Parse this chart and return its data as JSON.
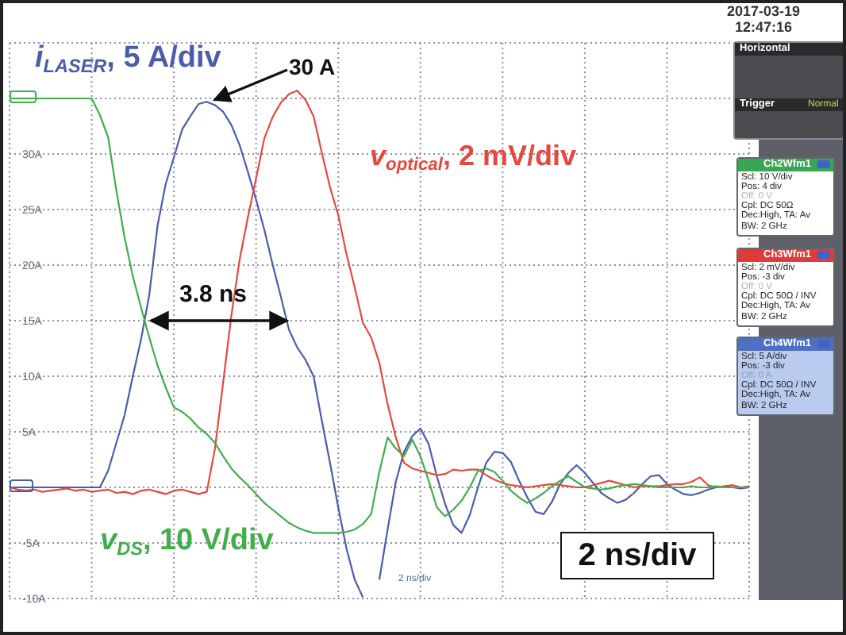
{
  "chart_data": {
    "type": "line",
    "categories": [
      null,
      null,
      null,
      null,
      null,
      null,
      null,
      null,
      null,
      null,
      null,
      null,
      null,
      null,
      null,
      null,
      null,
      null,
      null,
      null,
      null,
      null,
      null,
      null,
      null,
      null,
      null,
      null,
      null,
      null,
      null,
      null,
      null,
      null,
      null,
      null,
      null,
      null,
      null,
      null,
      null,
      null,
      null,
      null,
      null,
      null,
      null,
      null,
      null,
      null,
      null,
      null,
      null,
      null,
      null,
      null,
      null,
      null,
      null,
      null,
      null,
      null,
      null,
      null,
      null,
      null,
      null,
      null,
      null,
      null,
      null,
      null,
      null,
      null,
      null,
      null,
      null,
      null,
      null,
      null,
      null,
      null,
      null,
      null,
      null,
      null,
      null,
      null,
      null,
      null,
      null
    ],
    "series": [
      {
        "name": "i$_{LASER}$, 5 A/div",
        "color": "#4a5dab",
        "values": [
          0,
          0,
          0,
          0,
          0,
          0,
          0,
          0,
          0,
          0,
          0,
          0,
          1.5,
          4,
          6.5,
          10,
          13.3,
          17.3,
          23.5,
          27.3,
          29.7,
          32.2,
          33.4,
          34.5,
          34.7,
          34.4,
          33.8,
          32.6,
          30.8,
          28.4,
          25.9,
          23.2,
          20.1,
          17.2,
          14.2,
          12.6,
          11.5,
          10,
          6,
          2.2,
          -1.8,
          -5.5,
          -8.3,
          -9.9,
          null,
          -8.3,
          -3.8,
          0.5,
          3.2,
          4.6,
          5.3,
          3.9,
          1,
          -1.5,
          -3.4,
          -4.1,
          -2.5,
          0,
          2.2,
          3.2,
          3.1,
          2.3,
          0.6,
          -0.9,
          -2.2,
          -2.4,
          -1.3,
          0.3,
          1.3,
          2,
          1.3,
          0.4,
          -0.5,
          -1,
          -1.4,
          -1.1,
          -0.5,
          0.3,
          1,
          1.1,
          0.3,
          -0.2,
          -0.6,
          -0.7,
          -0.5,
          -0.2,
          0,
          0.1,
          0,
          -0.1,
          0
        ]
      },
      {
        "name": "v$_{optical}$, 2 mV/div",
        "color": "#e4493e",
        "values": [
          0,
          -0.2,
          -0.3,
          -0.2,
          -0.4,
          -0.3,
          -0.2,
          -0.1,
          -0.3,
          -0.2,
          -0.4,
          -0.3,
          -0.2,
          -0.5,
          -0.4,
          -0.6,
          -0.3,
          -0.2,
          -0.4,
          -0.6,
          -0.3,
          -0.2,
          -0.4,
          -0.6,
          -0.4,
          3.5,
          9.5,
          15.5,
          20.5,
          24.3,
          27.8,
          31.4,
          33.3,
          34.6,
          35.4,
          35.7,
          34.9,
          33.4,
          30.1,
          27,
          24.5,
          21,
          18,
          14.8,
          13.5,
          11.2,
          7.5,
          4.5,
          2.2,
          1.7,
          1.5,
          1.3,
          1.1,
          1.2,
          1.6,
          1.5,
          1.6,
          1.6,
          1.1,
          0.7,
          0.4,
          0.2,
          0.1,
          0,
          0.1,
          0.2,
          0.3,
          0.2,
          0.1,
          0,
          0,
          0.2,
          0.4,
          0.6,
          0.4,
          0.2,
          0,
          0.1,
          0.1,
          0.1,
          0.2,
          0.3,
          0.3,
          0.5,
          0.9,
          0.2,
          0,
          0.1,
          0.2,
          0,
          0.1
        ]
      },
      {
        "name": "v$_{DS}$, 10 V/div",
        "color": "#42ad4b",
        "values": [
          35,
          35,
          35,
          35,
          35,
          35,
          35,
          35,
          35,
          35,
          35,
          33.5,
          31.5,
          26.7,
          22.5,
          19,
          16.2,
          13.5,
          11,
          9,
          7.2,
          6.8,
          6.2,
          5.4,
          4.8,
          4,
          2.8,
          1.7,
          0.9,
          0.2,
          -0.6,
          -1.4,
          -2,
          -2.6,
          -3.2,
          -3.6,
          -3.9,
          -4.1,
          -4.1,
          -4.1,
          -4.1,
          -4,
          -3.8,
          -3.3,
          -2.4,
          1.4,
          4.5,
          3.5,
          2.8,
          4.3,
          2.8,
          0.6,
          -1.8,
          -2.6,
          -2,
          -1.2,
          0,
          1.5,
          1.7,
          1.4,
          0.6,
          -0.3,
          -0.9,
          -1.4,
          -1,
          -0.5,
          0.1,
          0.6,
          1,
          0.5,
          0,
          -0.1,
          -0.2,
          -0.1,
          0.1,
          0.2,
          0.3,
          0.2,
          0.1,
          0,
          0,
          0,
          0,
          0.1,
          0,
          0,
          0.1,
          0,
          0,
          0,
          0
        ]
      }
    ],
    "ylim": [
      -10,
      40
    ],
    "yticks": [
      {
        "value": 35,
        "label": null
      },
      {
        "value": 30,
        "label": "30A"
      },
      {
        "value": 25,
        "label": "25A"
      },
      {
        "value": 20,
        "label": "20A"
      },
      {
        "value": 15,
        "label": "15A"
      },
      {
        "value": 10,
        "label": "10A"
      },
      {
        "value": 5,
        "label": "5A"
      },
      {
        "value": 0,
        "label": null
      },
      {
        "value": -5,
        "label": "-5A"
      },
      {
        "value": -10,
        "label": "-10A"
      }
    ],
    "grid": true,
    "tick_labels": "y",
    "annotations": [
      "30 A",
      "3.8 ns",
      "2 ns/div",
      "2 ns/div",
      "2017-03-19",
      "12:47:16",
      "Horizontal",
      "Trigger",
      "Normal",
      "Ch2Wfm1",
      "Scl: 10 V/div",
      "Pos: 4 div",
      "Off: 0 V",
      "Cpl: DC 50Ω",
      "Dec:High, TA: Av",
      "BW: 2 GHz",
      "Ch3Wfm1",
      "Scl: 2 mV/div",
      "Pos: -3 div",
      "Off: 0 V",
      "Cpl: DC 50Ω / INV",
      "Dec:High, TA: Av",
      "BW: 2 GHz",
      "Ch4Wfm1",
      "Scl: 5 A/div",
      "Pos: -3 div",
      "Off: 0 A",
      "Cpl: DC 50Ω / INV",
      "Dec:High, TA: Av",
      "BW: 2 GHz"
    ]
  }
}
